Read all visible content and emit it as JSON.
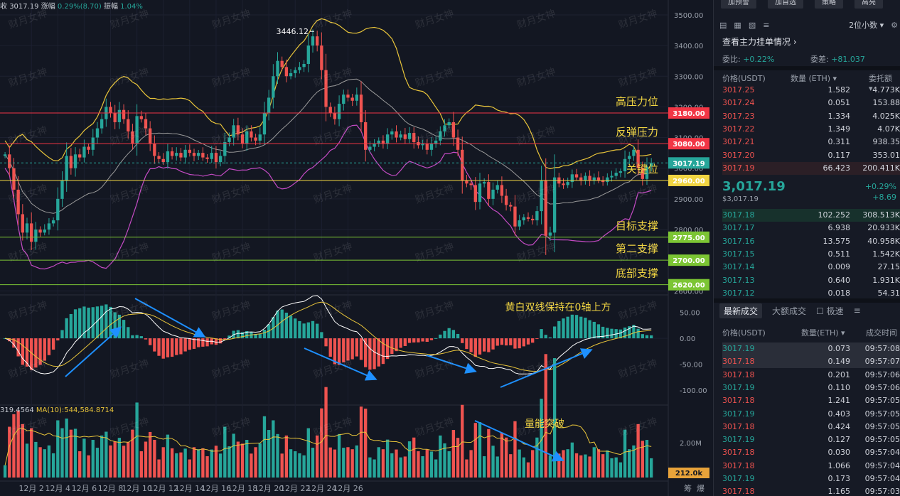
{
  "header": {
    "close_label": "收",
    "close_value": "3017.19",
    "change_label": "涨幅",
    "change_value": "0.29%(8.70)",
    "amp_label": "振幅",
    "amp_value": "1.04%"
  },
  "volume_info": {
    "vol_value": "319.4564",
    "ma_label": "MA(10):",
    "ma_value": "544,584.8714"
  },
  "watermark": "财月女神",
  "chart_data": [
    {
      "type": "candlestick",
      "pane": "price",
      "y_ticks": [
        2600,
        2700,
        2800,
        2900,
        3000,
        3100,
        3200,
        3300,
        3400,
        3500
      ],
      "ylim": [
        2610,
        3530
      ],
      "x_ticks": [
        "12月 2",
        "12月 4",
        "12月 6",
        "12月 8",
        "12月 10",
        "12月 12",
        "12月 14",
        "12月 16",
        "12月 18",
        "12月 20",
        "12月 22",
        "12月 24",
        "12月 26"
      ],
      "x_start_label": "12月 1",
      "candle_interval_hours": 4,
      "close_series": [
        3045,
        3000,
        2930,
        2850,
        2790,
        2820,
        2760,
        2800,
        2790,
        2800,
        2820,
        2830,
        2900,
        2960,
        3040,
        3000,
        3045,
        3035,
        3070,
        3060,
        3100,
        3130,
        3160,
        3200,
        3180,
        3150,
        3190,
        3160,
        3120,
        3080,
        3170,
        3160,
        3130,
        3080,
        3040,
        3030,
        3020,
        3055,
        3040,
        3050,
        3035,
        3060,
        3050,
        3040,
        3050,
        3035,
        3030,
        3050,
        3020,
        3040,
        3085,
        3100,
        3140,
        3110,
        3080,
        3120,
        3100,
        3090,
        3110,
        3180,
        3230,
        3300,
        3350,
        3330,
        3300,
        3310,
        3320,
        3330,
        3340,
        3400,
        3430,
        3400,
        3320,
        3200,
        3180,
        3160,
        3210,
        3240,
        3230,
        3220,
        3240,
        3150,
        3060,
        3070,
        3080,
        3090,
        3080,
        3110,
        3120,
        3100,
        3110,
        3095,
        3115,
        3085,
        3075,
        3080,
        3060,
        3080,
        3090,
        3120,
        3140,
        3150,
        3100,
        3060,
        2960,
        2950,
        2945,
        2890,
        2950,
        2955,
        2900,
        2930,
        2945,
        2910,
        2880,
        2875,
        2810,
        2830,
        2840,
        2835,
        2830,
        2860,
        2960,
        2780,
        2790,
        2970,
        2950,
        2945,
        2955,
        2980,
        2970,
        2960,
        2975,
        2960,
        2970,
        2960,
        2955,
        2970,
        2975,
        2985,
        2990,
        3030,
        3040,
        3060,
        3000,
        2965,
        3005,
        3017
      ],
      "levels": [
        {
          "value": 3180,
          "label": "3180.00",
          "name": "高压力位",
          "color": "#f23645"
        },
        {
          "value": 3080,
          "label": "3080.00",
          "name": "反弹压力",
          "color": "#f23645"
        },
        {
          "value": 2960,
          "label": "2960.00",
          "name": "关键位",
          "color": "#f0d442"
        },
        {
          "value": 2775,
          "label": "2775.00",
          "name": "目标支撑",
          "color": "#7cc534"
        },
        {
          "value": 2700,
          "label": "2700.00",
          "name": "第二支撑",
          "color": "#7cc534"
        },
        {
          "value": 2620,
          "label": "2620.00",
          "name": "底部支撑",
          "color": "#7cc534"
        }
      ],
      "current_price": {
        "value": 3017.19,
        "label": "3017.19",
        "color": "#26a69a"
      },
      "high_annotation": {
        "value": 3446.12,
        "label": "3446.12"
      },
      "bollinger": {
        "upper_color": "#e8c43a",
        "middle_color": "#9b9b9b",
        "lower_color": "#c44bc4"
      }
    },
    {
      "type": "histogram",
      "pane": "macd",
      "y_ticks": [
        50,
        0,
        -50,
        -100
      ],
      "ylim": [
        -115,
        70
      ],
      "annotation": "黄白双线保持在0轴上方",
      "up_color": "#26a69a",
      "down_color": "#ef5350",
      "dif_color": "#ffffff",
      "dea_color": "#e8c43a"
    },
    {
      "type": "bar",
      "pane": "volume",
      "y_ticks_labels": [
        "2.00M"
      ],
      "volume_label": "212.0k",
      "annotation": "量能突破",
      "ma_color": "#e8c43a"
    }
  ],
  "axis_corner": [
    "筹",
    "爆"
  ],
  "panel": {
    "top_buttons": [
      "加预警",
      "加自选",
      "策略",
      "高亮"
    ],
    "precision_label": "2位小数",
    "depth_link": "查看主力挂单情况",
    "ratio": {
      "weibi_label": "委比:",
      "weibi_value": "+0.22%",
      "weicha_label": "委差:",
      "weicha_value": "+81.037"
    },
    "orderbook_headers": [
      "价格(USDT)",
      "数量 (ETH)",
      "委托额"
    ],
    "asks": [
      {
        "price": "3017.25",
        "qty": "1.582",
        "total": "4.773K"
      },
      {
        "price": "3017.24",
        "qty": "0.051",
        "total": "153.88"
      },
      {
        "price": "3017.23",
        "qty": "1.334",
        "total": "4.025K"
      },
      {
        "price": "3017.22",
        "qty": "1.349",
        "total": "4.07K"
      },
      {
        "price": "3017.21",
        "qty": "0.311",
        "total": "938.35"
      },
      {
        "price": "3017.20",
        "qty": "0.117",
        "total": "353.01"
      },
      {
        "price": "3017.19",
        "qty": "66.423",
        "total": "200.411K"
      }
    ],
    "last_price": "3,017.19",
    "last_sub": "$3,017.19",
    "last_change_pct": "+0.29%",
    "last_change_abs": "+8.69",
    "bids": [
      {
        "price": "3017.18",
        "qty": "102.252",
        "total": "308.513K"
      },
      {
        "price": "3017.17",
        "qty": "6.938",
        "total": "20.933K"
      },
      {
        "price": "3017.16",
        "qty": "13.575",
        "total": "40.958K"
      },
      {
        "price": "3017.15",
        "qty": "0.511",
        "total": "1.542K"
      },
      {
        "price": "3017.14",
        "qty": "0.009",
        "total": "27.15"
      },
      {
        "price": "3017.13",
        "qty": "0.640",
        "total": "1.931K"
      },
      {
        "price": "3017.12",
        "qty": "0.018",
        "total": "54.31"
      }
    ],
    "trade_tabs": [
      "最新成交",
      "大额成交",
      "极速"
    ],
    "trade_headers": [
      "价格(USDT)",
      "数量(ETH)",
      "成交时间"
    ],
    "trades": [
      {
        "price": "3017.19",
        "qty": "0.073",
        "time": "09:57:08",
        "side": "buy"
      },
      {
        "price": "3017.18",
        "qty": "0.149",
        "time": "09:57:07",
        "side": "sell"
      },
      {
        "price": "3017.18",
        "qty": "0.201",
        "time": "09:57:06",
        "side": "sell"
      },
      {
        "price": "3017.19",
        "qty": "0.110",
        "time": "09:57:06",
        "side": "buy"
      },
      {
        "price": "3017.18",
        "qty": "1.241",
        "time": "09:57:05",
        "side": "sell"
      },
      {
        "price": "3017.19",
        "qty": "0.403",
        "time": "09:57:05",
        "side": "buy"
      },
      {
        "price": "3017.18",
        "qty": "0.424",
        "time": "09:57:05",
        "side": "sell"
      },
      {
        "price": "3017.19",
        "qty": "0.127",
        "time": "09:57:05",
        "side": "buy"
      },
      {
        "price": "3017.18",
        "qty": "0.030",
        "time": "09:57:04",
        "side": "sell"
      },
      {
        "price": "3017.18",
        "qty": "1.066",
        "time": "09:57:04",
        "side": "sell"
      },
      {
        "price": "3017.19",
        "qty": "0.173",
        "time": "09:57:04",
        "side": "buy"
      },
      {
        "price": "3017.18",
        "qty": "1.165",
        "time": "09:57:03",
        "side": "sell"
      }
    ]
  }
}
